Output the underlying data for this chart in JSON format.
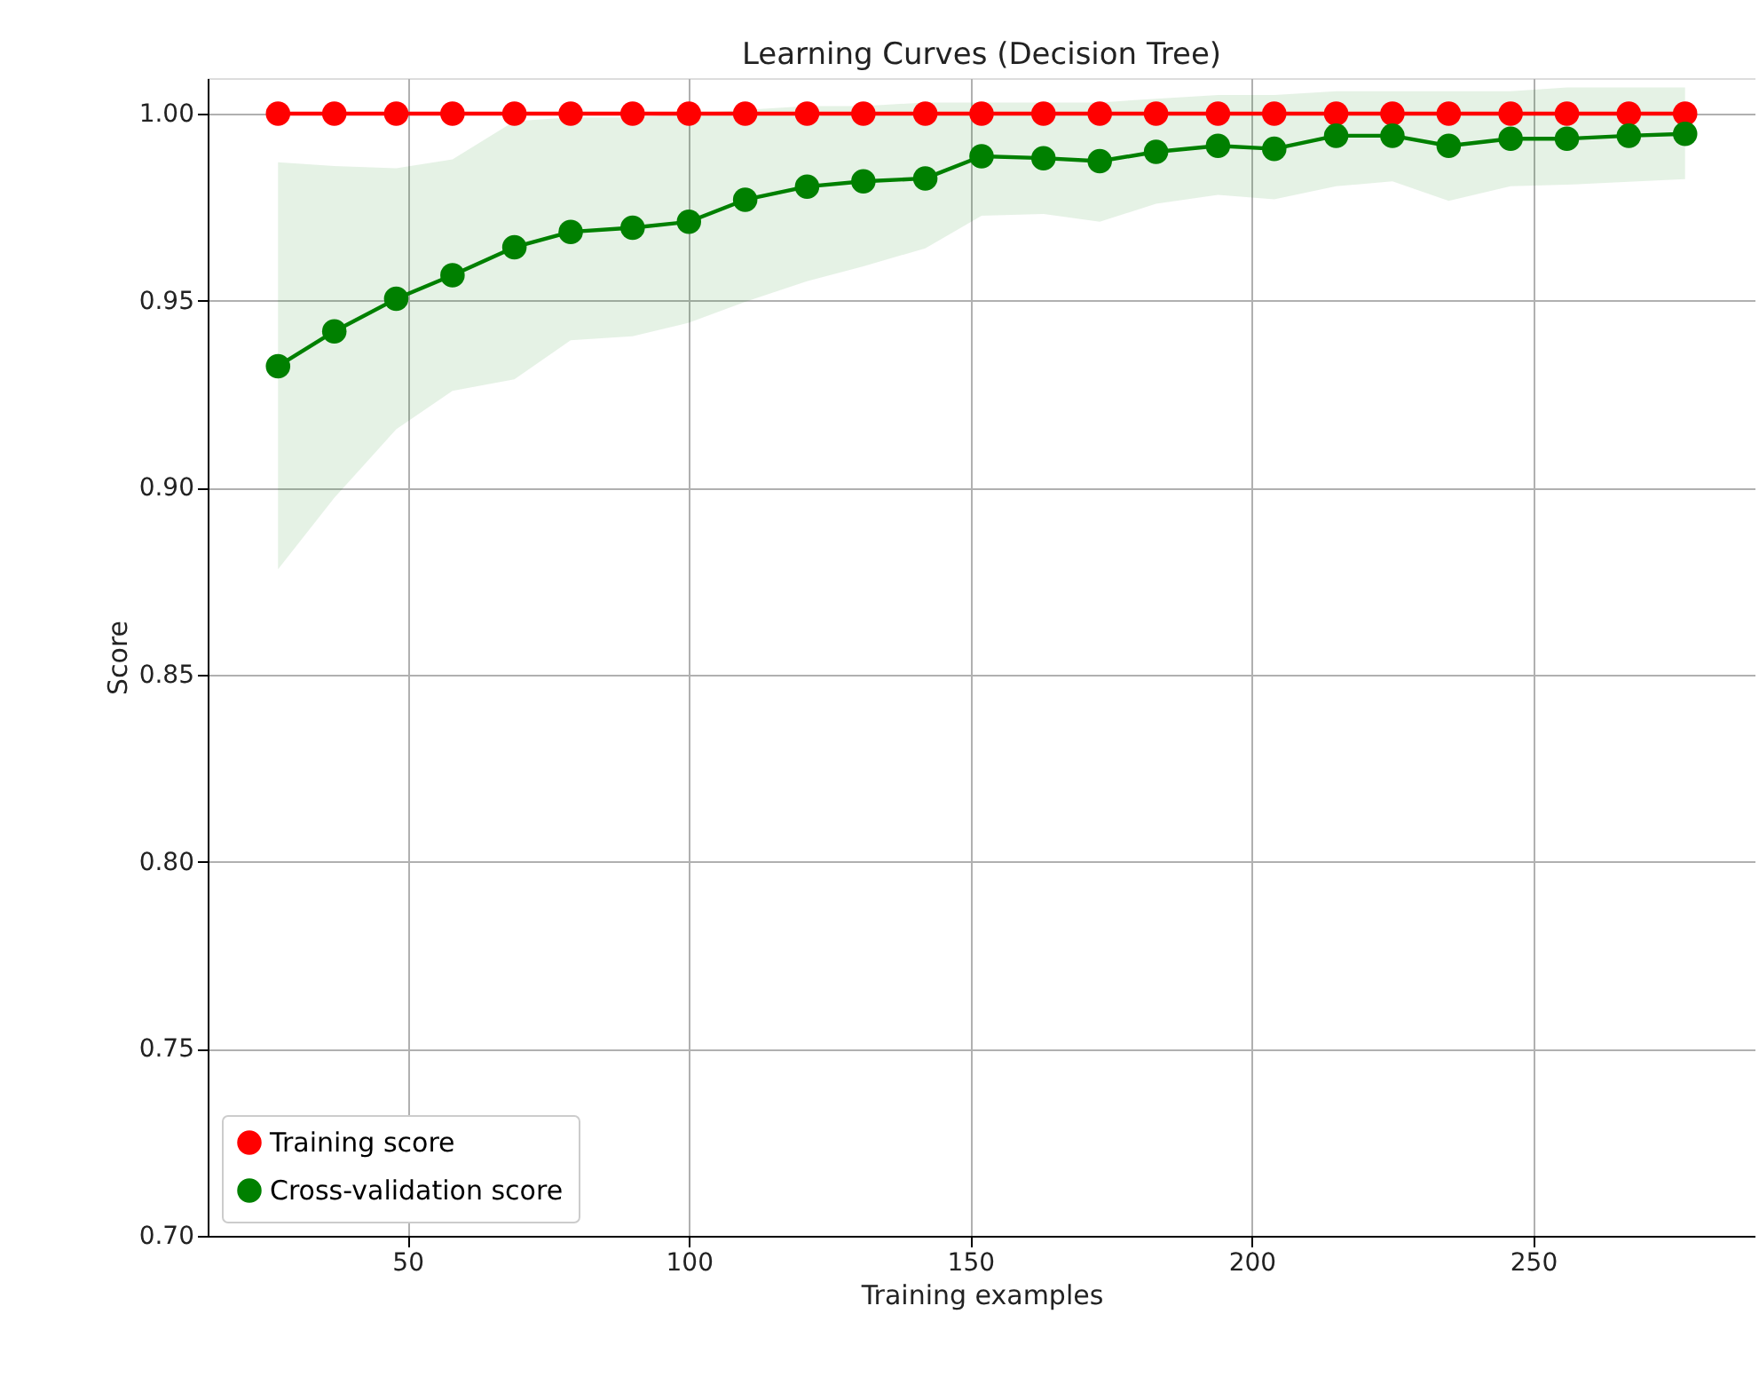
{
  "chart_data": {
    "type": "line",
    "title": "Learning Curves (Decision Tree)",
    "xlabel": "Training examples",
    "ylabel": "Score",
    "x": [
      27,
      37,
      48,
      58,
      69,
      79,
      90,
      100,
      110,
      121,
      131,
      142,
      152,
      163,
      173,
      183,
      194,
      204,
      215,
      225,
      235,
      246,
      256,
      267,
      277
    ],
    "series": [
      {
        "name": "Training score",
        "color": "#ff0000",
        "values": [
          1,
          1,
          1,
          1,
          1,
          1,
          1,
          1,
          1,
          1,
          1,
          1,
          1,
          1,
          1,
          1,
          1,
          1,
          1,
          1,
          1,
          1,
          1,
          1,
          1
        ]
      },
      {
        "name": "Cross-validation score",
        "color": "#008000",
        "values": [
          0.9325,
          0.9418,
          0.9505,
          0.9568,
          0.9643,
          0.9684,
          0.9695,
          0.9711,
          0.977,
          0.9805,
          0.9819,
          0.9827,
          0.9886,
          0.9881,
          0.9873,
          0.9898,
          0.9914,
          0.9906,
          0.9941,
          0.9941,
          0.9914,
          0.9933,
          0.9933,
          0.9941,
          0.9946
        ],
        "lower": [
          0.8782,
          0.8973,
          0.9156,
          0.9259,
          0.929,
          0.9394,
          0.9405,
          0.9441,
          0.9497,
          0.9552,
          0.9592,
          0.964,
          0.9727,
          0.9732,
          0.9711,
          0.9759,
          0.9783,
          0.9771,
          0.9806,
          0.9819,
          0.9767,
          0.9806,
          0.981,
          0.9818,
          0.9825
        ],
        "upper": [
          0.987,
          0.986,
          0.9854,
          0.9878,
          0.998,
          0.999,
          0.999,
          1.0,
          1.001,
          1.002,
          1.002,
          1.003,
          1.003,
          1.003,
          1.003,
          1.004,
          1.005,
          1.005,
          1.006,
          1.006,
          1.006,
          1.006,
          1.007,
          1.007,
          1.007
        ]
      }
    ],
    "xlim": [
      14.5,
      289.5
    ],
    "ylim": [
      0.7,
      1.0095
    ],
    "xticks": [
      50,
      100,
      150,
      200,
      250
    ],
    "yticks": [
      {
        "value": 0.7,
        "label": "0.70"
      },
      {
        "value": 0.75,
        "label": "0.75"
      },
      {
        "value": 0.8,
        "label": "0.80"
      },
      {
        "value": 0.85,
        "label": "0.85"
      },
      {
        "value": 0.9,
        "label": "0.90"
      },
      {
        "value": 0.95,
        "label": "0.95"
      },
      {
        "value": 1.0,
        "label": "1.00"
      }
    ],
    "grid": true,
    "legend": "bottom left",
    "marker": "circle",
    "line_style": "solid"
  }
}
